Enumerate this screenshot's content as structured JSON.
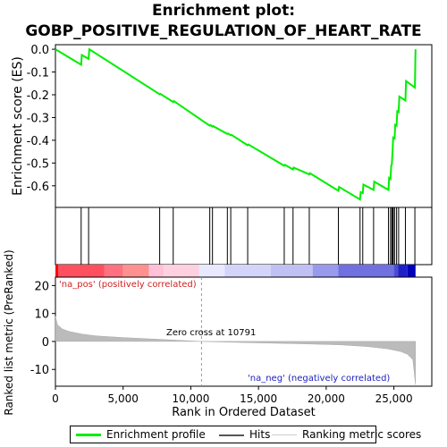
{
  "chart_data": {
    "type": "line",
    "title_line1": "Enrichment plot:",
    "title_line2": "GOBP_POSITIVE_REGULATION_OF_HEART_RATE",
    "es_panel": {
      "ylabel": "Enrichment score (ES)",
      "yticks": [
        "0.0",
        "-0.1",
        "-0.2",
        "-0.3",
        "-0.4",
        "-0.5",
        "-0.6"
      ],
      "ylim": [
        -0.695,
        0.02
      ],
      "series": {
        "name": "Enrichment profile",
        "color": "#00ee00",
        "points": [
          [
            0,
            0.0
          ],
          [
            1900,
            -0.068
          ],
          [
            1950,
            -0.025
          ],
          [
            2450,
            -0.042
          ],
          [
            2500,
            0.0
          ],
          [
            7700,
            -0.198
          ],
          [
            7750,
            -0.196
          ],
          [
            8700,
            -0.232
          ],
          [
            8750,
            -0.228
          ],
          [
            11400,
            -0.336
          ],
          [
            11450,
            -0.333
          ],
          [
            11600,
            -0.34
          ],
          [
            11650,
            -0.338
          ],
          [
            12700,
            -0.372
          ],
          [
            12750,
            -0.37
          ],
          [
            12950,
            -0.378
          ],
          [
            13000,
            -0.376
          ],
          [
            14200,
            -0.422
          ],
          [
            14250,
            -0.418
          ],
          [
            16900,
            -0.512
          ],
          [
            16950,
            -0.508
          ],
          [
            17550,
            -0.528
          ],
          [
            17600,
            -0.52
          ],
          [
            18750,
            -0.55
          ],
          [
            18800,
            -0.545
          ],
          [
            20900,
            -0.622
          ],
          [
            20950,
            -0.605
          ],
          [
            22500,
            -0.66
          ],
          [
            22550,
            -0.628
          ],
          [
            22700,
            -0.632
          ],
          [
            22750,
            -0.595
          ],
          [
            23500,
            -0.618
          ],
          [
            23550,
            -0.582
          ],
          [
            24600,
            -0.618
          ],
          [
            24650,
            -0.565
          ],
          [
            24750,
            -0.57
          ],
          [
            24800,
            -0.512
          ],
          [
            24850,
            -0.505
          ],
          [
            24900,
            -0.45
          ],
          [
            24950,
            -0.388
          ],
          [
            25050,
            -0.392
          ],
          [
            25100,
            -0.332
          ],
          [
            25200,
            -0.336
          ],
          [
            25250,
            -0.272
          ],
          [
            25350,
            -0.276
          ],
          [
            25400,
            -0.208
          ],
          [
            25850,
            -0.225
          ],
          [
            25900,
            -0.14
          ],
          [
            26550,
            -0.168
          ],
          [
            26600,
            0.0
          ]
        ]
      }
    },
    "hits": [
      1900,
      2450,
      7700,
      8700,
      11400,
      11600,
      12700,
      12950,
      14200,
      16900,
      17550,
      18750,
      20900,
      22500,
      22700,
      23500,
      24600,
      24750,
      24850,
      24900,
      24950,
      25050,
      25200,
      25350,
      25850,
      26550
    ],
    "ranked_panel": {
      "ylabel": "Ranked list metric (PreRanked)",
      "yticks": [
        "20",
        "10",
        "0",
        "-10"
      ],
      "ylim": [
        -16,
        23
      ],
      "pos_label": "'na_pos' (positively correlated)",
      "neg_label": "'na_neg' (negatively correlated)",
      "zero_cross_label": "Zero cross at 10791",
      "zero_cross": 10791,
      "metric_points": [
        [
          0,
          9.0
        ],
        [
          150,
          6.0
        ],
        [
          500,
          4.5
        ],
        [
          1000,
          3.6
        ],
        [
          2000,
          2.6
        ],
        [
          3000,
          2.0
        ],
        [
          5000,
          1.4
        ],
        [
          8000,
          0.7
        ],
        [
          10791,
          0.0
        ],
        [
          14000,
          -0.4
        ],
        [
          18000,
          -0.8
        ],
        [
          21000,
          -1.2
        ],
        [
          23000,
          -1.8
        ],
        [
          24500,
          -2.6
        ],
        [
          25500,
          -3.6
        ],
        [
          26000,
          -4.6
        ],
        [
          26400,
          -6.5
        ],
        [
          26600,
          -15.5
        ]
      ]
    },
    "xaxis": {
      "xlabel": "Rank in Ordered Dataset",
      "xticks": [
        "0",
        "5,000",
        "10,000",
        "15,000",
        "20,000",
        "25,000"
      ],
      "xlim": [
        0,
        27800
      ]
    },
    "legend": [
      {
        "label": "Enrichment profile",
        "color": "#00ee00"
      },
      {
        "label": "Hits",
        "color": "#000000"
      },
      {
        "label": "Ranking metric scores",
        "color": "#cccccc"
      }
    ]
  }
}
